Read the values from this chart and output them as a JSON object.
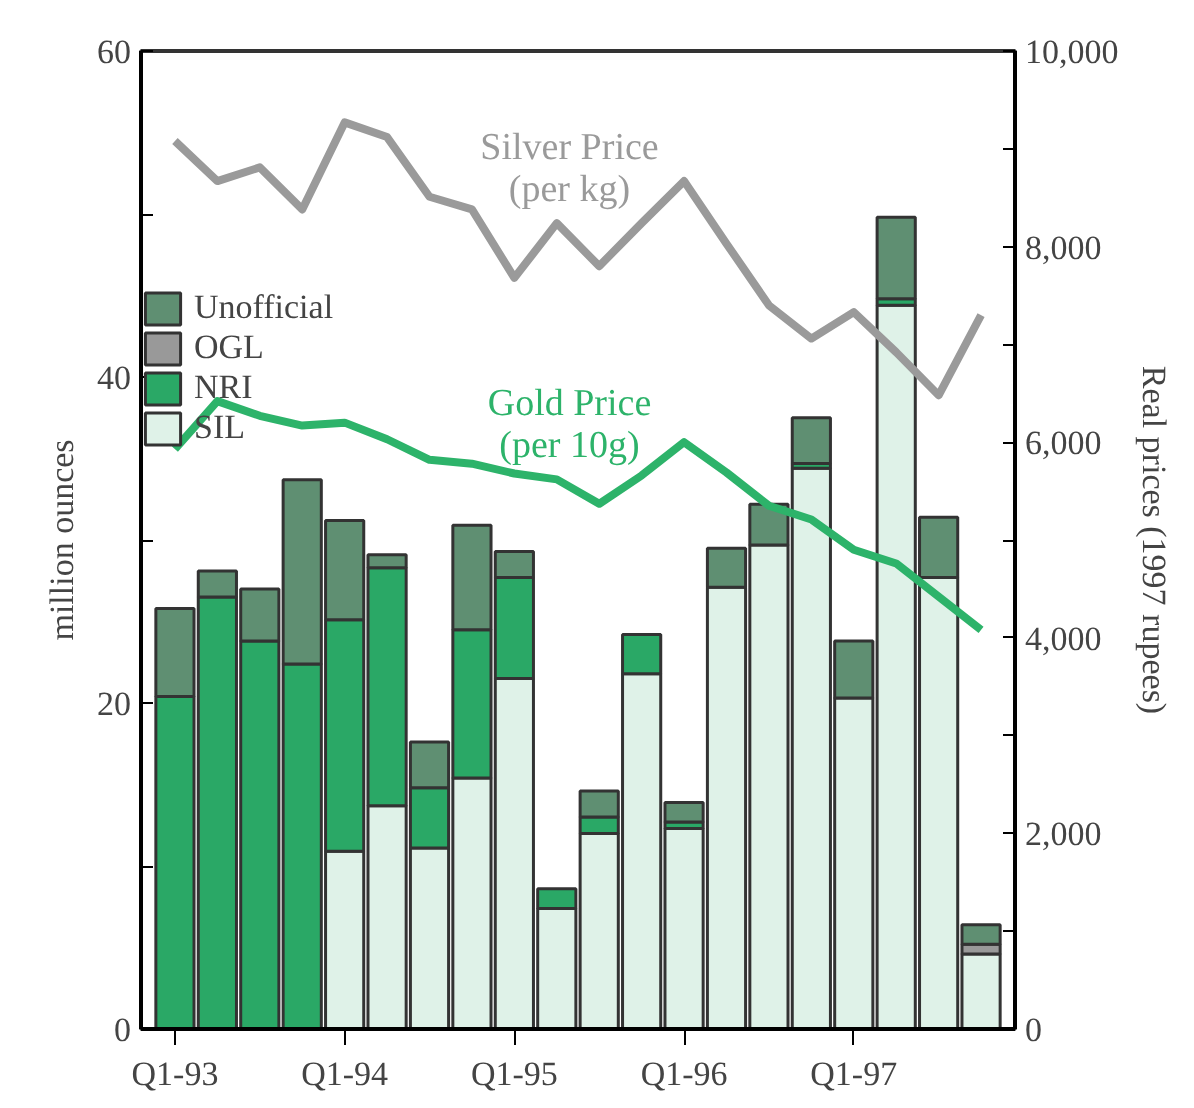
{
  "chart_data": {
    "type": "bar",
    "stacked": true,
    "categories": [
      "Q1-93",
      null,
      null,
      null,
      "Q1-94",
      null,
      null,
      null,
      "Q1-95",
      null,
      null,
      null,
      "Q1-96",
      null,
      null,
      null,
      "Q1-97",
      null,
      null,
      null
    ],
    "ylabel": "million ounces",
    "y2label": "Real prices (1997 rupees)",
    "ylim": [
      0,
      60
    ],
    "yticks": [
      0,
      {
        "value": 10,
        "label": null
      },
      20,
      {
        "value": 30,
        "label": null
      },
      40,
      {
        "value": 50,
        "label": null
      },
      60
    ],
    "y2lim": [
      0,
      10000
    ],
    "y2ticks": [
      {
        "value": 0,
        "label": "0"
      },
      {
        "value": 1000,
        "label": null
      },
      {
        "value": 2000,
        "label": "2,000"
      },
      {
        "value": 3000,
        "label": null
      },
      {
        "value": 4000,
        "label": "4,000"
      },
      {
        "value": 5000,
        "label": null
      },
      {
        "value": 6000,
        "label": "6,000"
      },
      {
        "value": 7000,
        "label": null
      },
      {
        "value": 8000,
        "label": "8,000"
      },
      {
        "value": 9000,
        "label": null
      },
      {
        "value": 10000,
        "label": "10,000"
      }
    ],
    "legend": "top left",
    "grid": false,
    "series": [
      {
        "name": "SIL",
        "color": "#dff2e8",
        "values": [
          0,
          0,
          0,
          0,
          10.9,
          13.7,
          11.1,
          15.4,
          21.5,
          7.4,
          12.0,
          21.8,
          12.3,
          27.1,
          29.7,
          34.4,
          20.3,
          44.4,
          27.7,
          4.6
        ]
      },
      {
        "name": "NRI",
        "color": "#2aa866",
        "values": [
          20.4,
          26.5,
          23.8,
          22.4,
          14.2,
          14.6,
          3.7,
          9.1,
          6.2,
          1.2,
          1.0,
          2.4,
          0.4,
          0,
          0,
          0.3,
          0,
          0.4,
          0,
          0
        ]
      },
      {
        "name": "OGL",
        "color": "#999999",
        "values": [
          0,
          0,
          0,
          0,
          0,
          0,
          0,
          0,
          0,
          0,
          0,
          0,
          0,
          0,
          0,
          0,
          0,
          0,
          0,
          0.6
        ]
      },
      {
        "name": "Unofficial",
        "color": "#5f8f72",
        "values": [
          5.4,
          1.6,
          3.2,
          11.3,
          6.1,
          0.8,
          2.8,
          6.4,
          1.6,
          0,
          1.6,
          0,
          1.2,
          2.4,
          2.5,
          2.8,
          3.5,
          5.0,
          3.7,
          1.2
        ]
      },
      {
        "name": "Silver Price\n(per kg)",
        "type": "line",
        "axis": "y2",
        "color": "#9a9a9a",
        "values": [
          9080,
          8670,
          8810,
          8380,
          9270,
          9120,
          8510,
          8380,
          7680,
          8240,
          7800,
          8240,
          8670,
          8030,
          7400,
          7060,
          7330,
          6920,
          6480,
          7300
        ]
      },
      {
        "name": "Gold Price\n(per 10g)",
        "type": "line",
        "axis": "y2",
        "color": "#2db36a",
        "values": [
          5930,
          6420,
          6270,
          6170,
          6200,
          6030,
          5820,
          5780,
          5680,
          5620,
          5370,
          5660,
          6000,
          5690,
          5350,
          5210,
          4900,
          4760,
          4420,
          4080
        ]
      }
    ]
  }
}
